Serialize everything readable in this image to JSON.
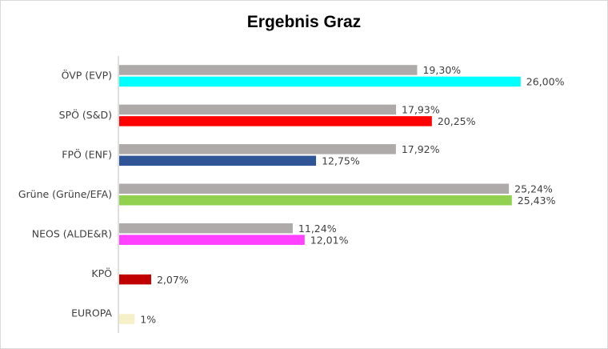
{
  "chart_data": {
    "type": "bar",
    "orientation": "horizontal",
    "title": "Ergebnis Graz",
    "categories": [
      "ÖVP (EVP)",
      "SPÖ (S&D)",
      "FPÖ (ENF)",
      "Grüne (Grüne/EFA)",
      "NEOS (ALDE&R)",
      "KPÖ",
      "EUROPA"
    ],
    "series": [
      {
        "color": "#aeaaaa",
        "values": [
          19.3,
          17.93,
          17.92,
          25.24,
          11.24,
          null,
          null
        ],
        "labels": [
          "19,30%",
          "17,93%",
          "17,92%",
          "25,24%",
          "11,24%",
          "",
          ""
        ]
      },
      {
        "colors": [
          "#00ffff",
          "#ff0000",
          "#2f5597",
          "#92d050",
          "#ff40ff",
          "#c00000",
          "#f5f0c8"
        ],
        "values": [
          26.0,
          20.25,
          12.75,
          25.43,
          12.01,
          2.07,
          1.0
        ],
        "labels": [
          "26,00%",
          "20,25%",
          "12,75%",
          "25,43%",
          "12,01%",
          "2,07%",
          "1%"
        ]
      }
    ],
    "xlim": [
      0,
      27
    ],
    "grid": false,
    "legend": "none"
  }
}
